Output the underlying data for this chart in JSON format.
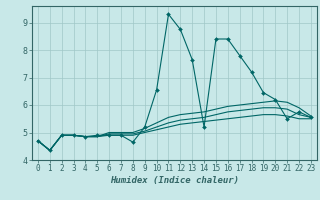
{
  "xlabel": "Humidex (Indice chaleur)",
  "background_color": "#c8e8e8",
  "grid_color": "#a0c8c8",
  "line_color": "#006666",
  "spine_color": "#336666",
  "tick_color": "#336666",
  "xlim": [
    -0.5,
    23.5
  ],
  "ylim": [
    4.0,
    9.6
  ],
  "yticks": [
    4,
    5,
    6,
    7,
    8,
    9
  ],
  "xticks": [
    0,
    1,
    2,
    3,
    4,
    5,
    6,
    7,
    8,
    9,
    10,
    11,
    12,
    13,
    14,
    15,
    16,
    17,
    18,
    19,
    20,
    21,
    22,
    23
  ],
  "series": [
    [
      4.7,
      4.35,
      4.9,
      4.9,
      4.85,
      4.9,
      4.9,
      4.9,
      4.65,
      5.2,
      6.55,
      9.3,
      8.75,
      7.65,
      5.2,
      8.4,
      8.4,
      7.8,
      7.2,
      6.45,
      6.2,
      5.5,
      5.75,
      5.55
    ],
    [
      4.7,
      4.35,
      4.9,
      4.9,
      4.85,
      4.85,
      5.0,
      5.0,
      5.0,
      5.15,
      5.35,
      5.55,
      5.65,
      5.7,
      5.75,
      5.85,
      5.95,
      6.0,
      6.05,
      6.1,
      6.15,
      6.1,
      5.9,
      5.6
    ],
    [
      4.7,
      4.35,
      4.9,
      4.9,
      4.85,
      4.85,
      4.95,
      4.95,
      4.95,
      5.05,
      5.2,
      5.35,
      5.45,
      5.5,
      5.55,
      5.65,
      5.75,
      5.8,
      5.85,
      5.9,
      5.9,
      5.85,
      5.65,
      5.55
    ],
    [
      4.7,
      4.35,
      4.9,
      4.9,
      4.85,
      4.85,
      4.9,
      4.9,
      4.9,
      5.0,
      5.1,
      5.2,
      5.3,
      5.35,
      5.4,
      5.45,
      5.5,
      5.55,
      5.6,
      5.65,
      5.65,
      5.6,
      5.5,
      5.5
    ]
  ],
  "xlabel_fontsize": 6.5,
  "tick_fontsize": 5.5
}
